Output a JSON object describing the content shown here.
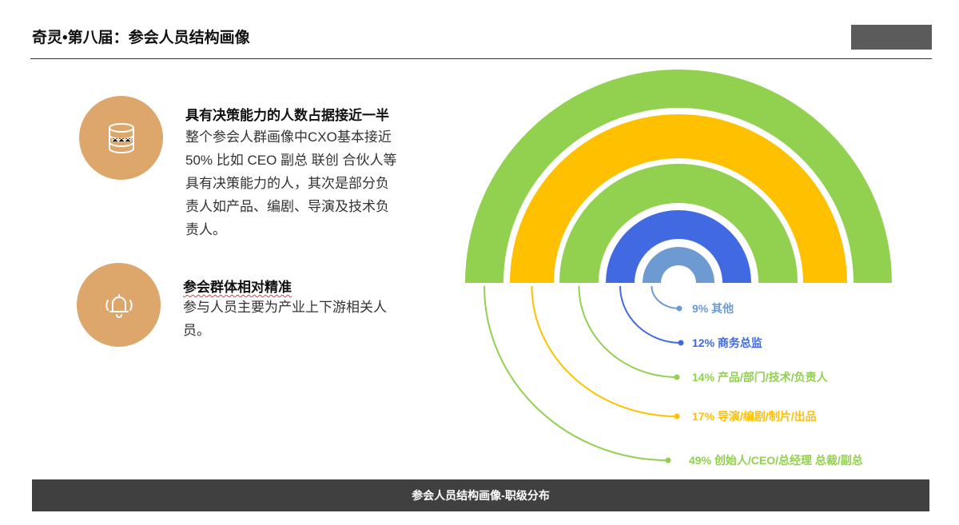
{
  "header": {
    "title": "奇灵•第八届：参会人员结构画像"
  },
  "blocks": [
    {
      "heading": "具有决策能力的人数占据接近一半",
      "body_lines": [
        "整个参会人群画像中CXO基本接近",
        "50% 比如 CEO 副总 联创 合伙人等",
        "具有决策能力的人，其次是部分负",
        "责人如产品、编剧、导演及技术负",
        "责人。"
      ],
      "icon": "database-icon"
    },
    {
      "heading": "参会群体相对精准",
      "body_lines": [
        "参与人员主要为产业上下游相关人",
        "员。"
      ],
      "icon": "bell-icon"
    }
  ],
  "chart_data": {
    "type": "pie",
    "style": "concentric half-ring (rainbow) chart",
    "series": [
      {
        "name": "其他",
        "value": 9,
        "label": "9% 其他",
        "color": "#6d9bd1"
      },
      {
        "name": "商务总监",
        "value": 12,
        "label": "12% 商务总监",
        "color": "#4169e1"
      },
      {
        "name": "产品/部门/技术/负责人",
        "value": 14,
        "label": "14% 产品/部门/技术/负责人",
        "color": "#92d050"
      },
      {
        "name": "导演/编剧/制片/出品",
        "value": 17,
        "label": "17% 导演/编剧/制片/出品",
        "color": "#ffc000"
      },
      {
        "name": "创始人/CEO/总经理 总裁/副总",
        "value": 49,
        "label": "49% 创始人/CEO/总经理 总裁/副总",
        "color": "#92d050"
      }
    ]
  },
  "footer": {
    "caption": "参会人员结构画像-职级分布"
  }
}
